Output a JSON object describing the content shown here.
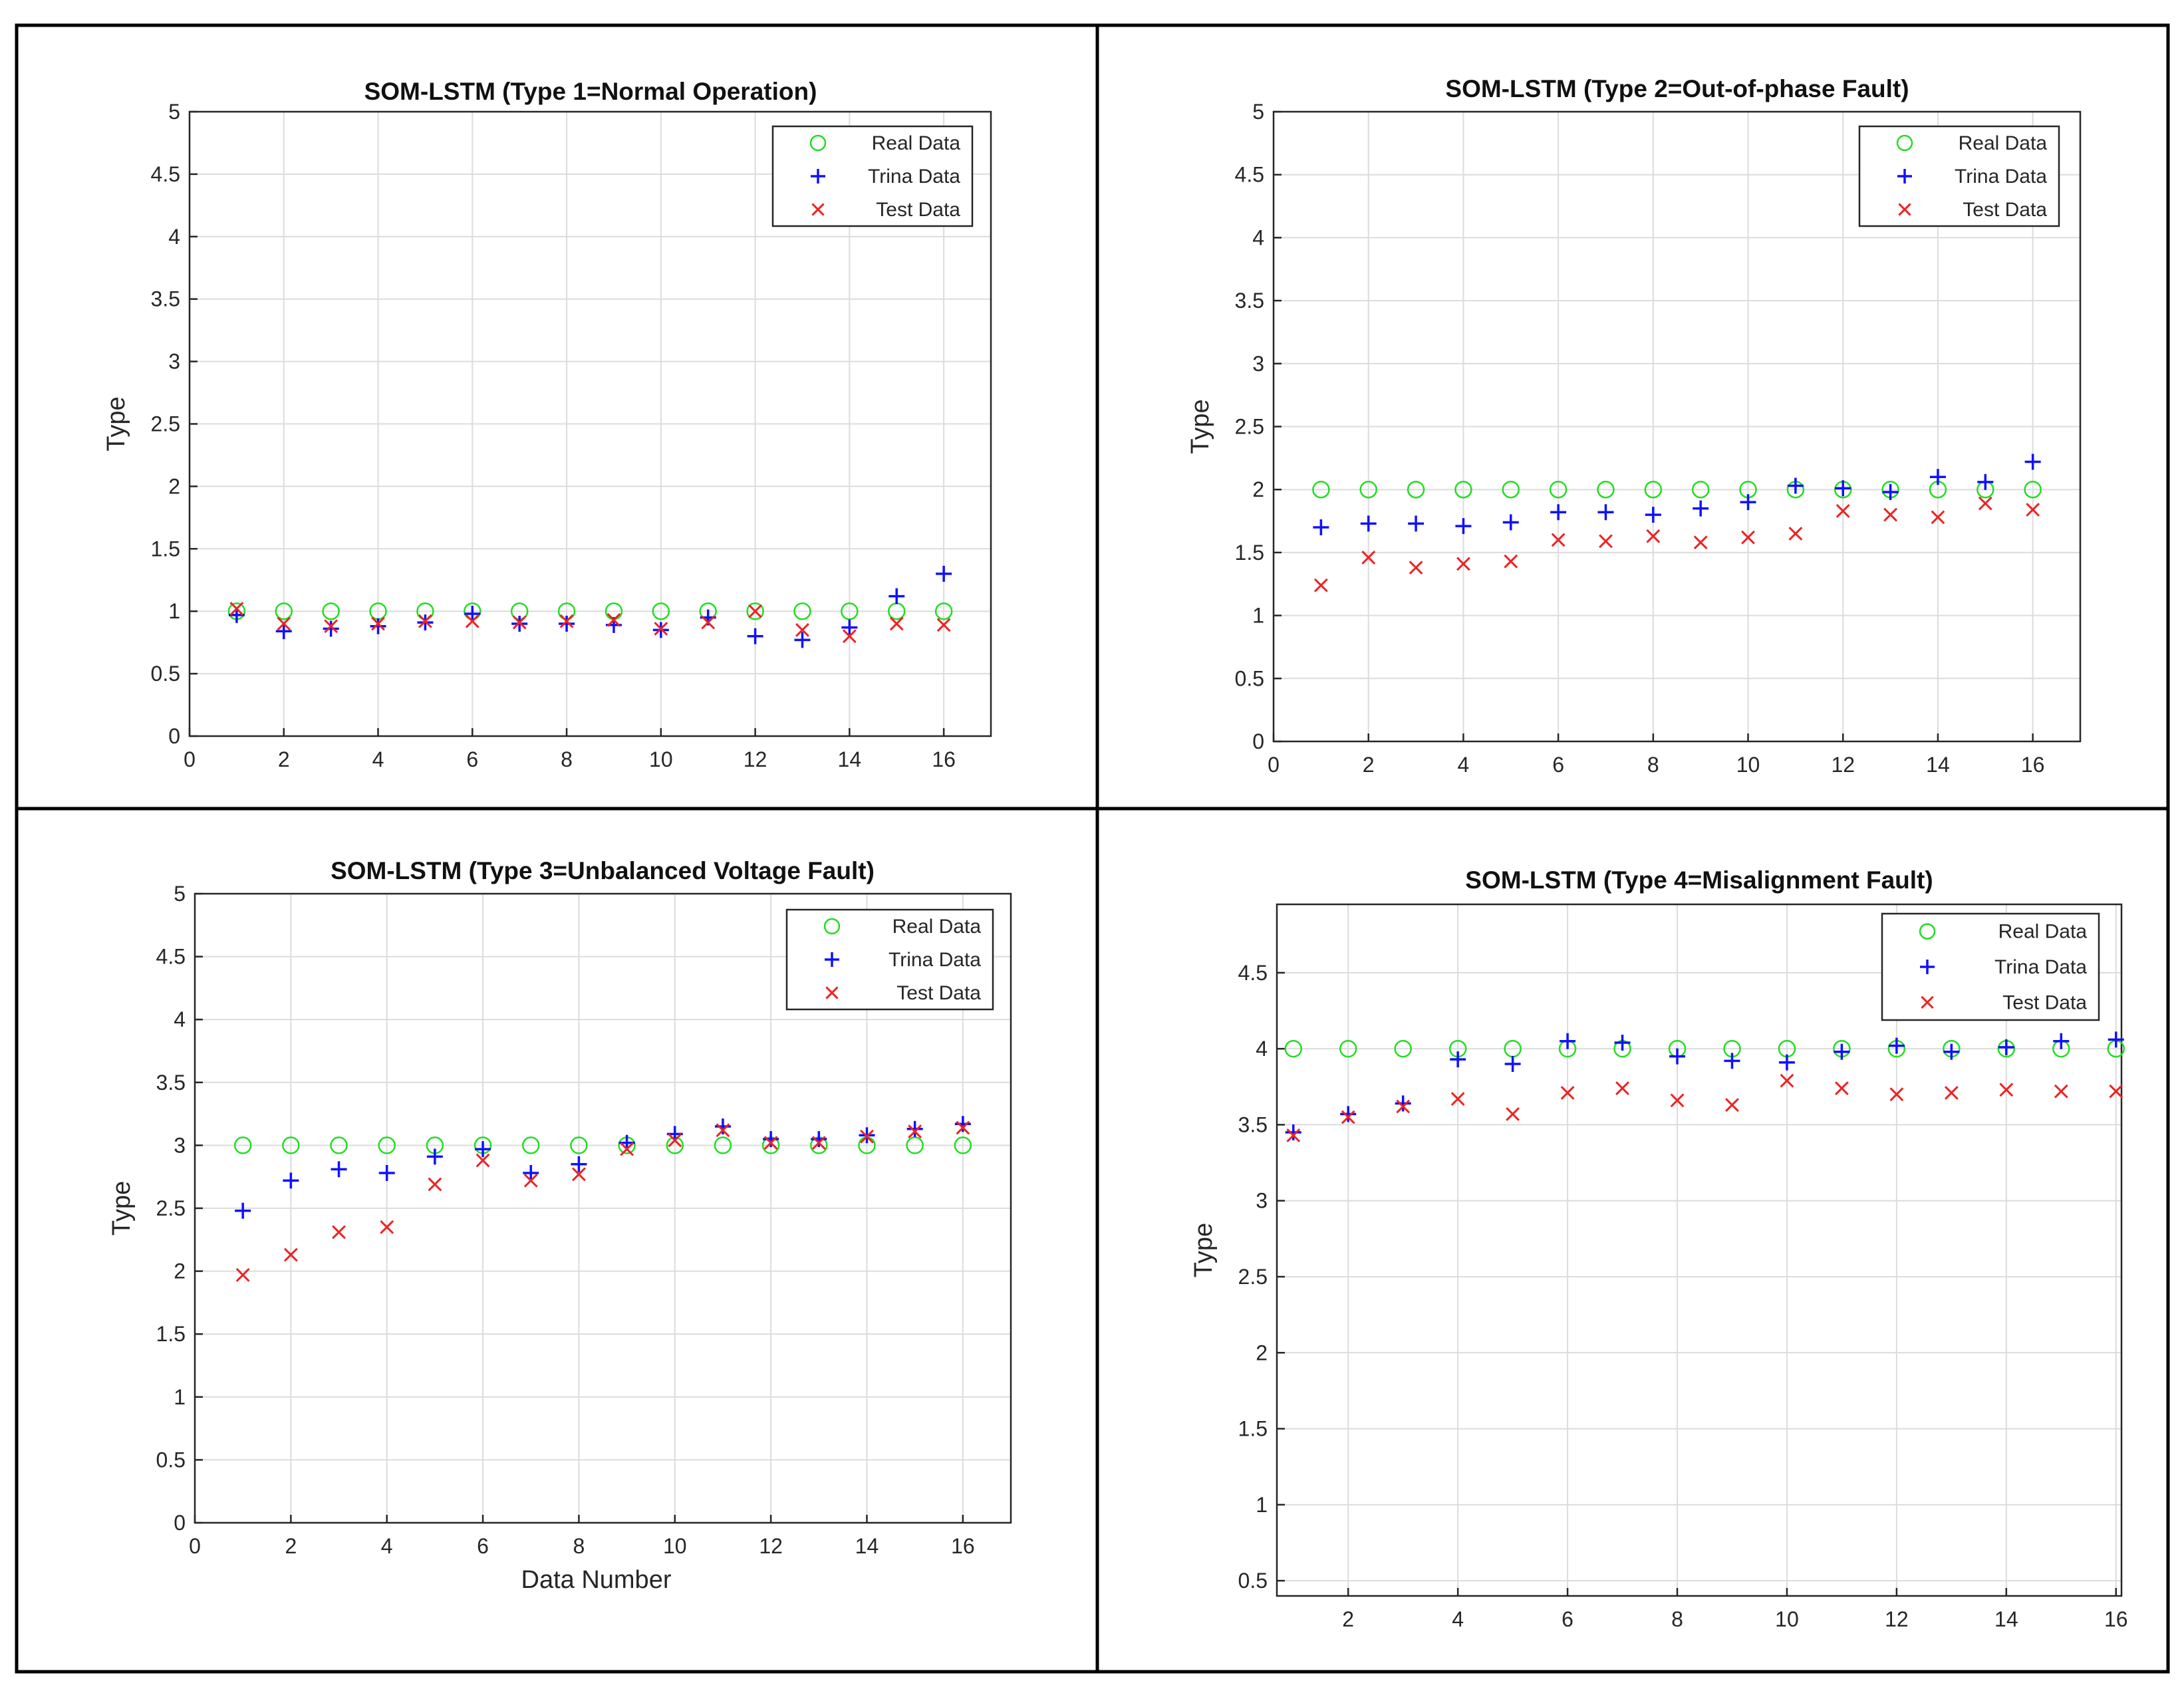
{
  "colors": {
    "real": "#22dd22",
    "train": "#1010ff",
    "test": "#ee2222",
    "grid": "#dcdcdc",
    "axes": "#262626"
  },
  "chart_data": [
    {
      "type": "scatter",
      "title": "SOM-LSTM (Type 1=Normal Operation)",
      "xlabel": "",
      "ylabel": "Type",
      "xlim": [
        0,
        17
      ],
      "ylim": [
        0,
        5
      ],
      "xticks": [
        0,
        2,
        4,
        6,
        8,
        10,
        12,
        14,
        16
      ],
      "yticks": [
        0,
        0.5,
        1,
        1.5,
        2,
        2.5,
        3,
        3.5,
        4,
        4.5,
        5
      ],
      "xtick_labels": [
        "0",
        "2",
        "4",
        "6",
        "8",
        "10",
        "12",
        "14",
        "16"
      ],
      "ytick_labels": [
        "0",
        "0.5",
        "1",
        "1.5",
        "2",
        "2.5",
        "3",
        "3.5",
        "4",
        "4.5",
        "5"
      ],
      "grid": true,
      "legend_position": "top-right",
      "x": [
        1,
        2,
        3,
        4,
        5,
        6,
        7,
        8,
        9,
        10,
        11,
        12,
        13,
        14,
        15,
        16
      ],
      "series": [
        {
          "name": "Real Data",
          "marker": "circle",
          "values": [
            1,
            1,
            1,
            1,
            1,
            1,
            1,
            1,
            1,
            1,
            1,
            1,
            1,
            1,
            1,
            1
          ]
        },
        {
          "name": "Trina Data",
          "marker": "plus",
          "values": [
            0.97,
            0.84,
            0.86,
            0.88,
            0.91,
            0.98,
            0.9,
            0.9,
            0.89,
            0.85,
            0.95,
            0.8,
            0.77,
            0.87,
            1.12,
            1.3
          ]
        },
        {
          "name": "Test Data",
          "marker": "cross",
          "values": [
            1.02,
            0.9,
            0.88,
            0.9,
            0.92,
            0.92,
            0.91,
            0.92,
            0.93,
            0.86,
            0.91,
            1.0,
            0.85,
            0.8,
            0.9,
            0.89
          ]
        }
      ]
    },
    {
      "type": "scatter",
      "title": "SOM-LSTM (Type 2=Out-of-phase Fault)",
      "xlabel": "",
      "ylabel": "Type",
      "xlim": [
        0,
        17
      ],
      "ylim": [
        0,
        5
      ],
      "xticks": [
        0,
        2,
        4,
        6,
        8,
        10,
        12,
        14,
        16
      ],
      "yticks": [
        0,
        0.5,
        1,
        1.5,
        2,
        2.5,
        3,
        3.5,
        4,
        4.5,
        5
      ],
      "xtick_labels": [
        "0",
        "2",
        "4",
        "6",
        "8",
        "10",
        "12",
        "14",
        "16"
      ],
      "ytick_labels": [
        "0",
        "0.5",
        "1",
        "1.5",
        "2",
        "2.5",
        "3",
        "3.5",
        "4",
        "4.5",
        "5"
      ],
      "grid": true,
      "legend_position": "top-right",
      "x": [
        1,
        2,
        3,
        4,
        5,
        6,
        7,
        8,
        9,
        10,
        11,
        12,
        13,
        14,
        15,
        16
      ],
      "series": [
        {
          "name": "Real Data",
          "marker": "circle",
          "values": [
            2,
            2,
            2,
            2,
            2,
            2,
            2,
            2,
            2,
            2,
            2,
            2,
            2,
            2,
            2,
            2
          ]
        },
        {
          "name": "Trina Data",
          "marker": "plus",
          "values": [
            1.7,
            1.73,
            1.73,
            1.71,
            1.74,
            1.82,
            1.82,
            1.8,
            1.85,
            1.9,
            2.03,
            2.01,
            1.98,
            2.1,
            2.06,
            2.22
          ]
        },
        {
          "name": "Test Data",
          "marker": "cross",
          "values": [
            1.24,
            1.46,
            1.38,
            1.41,
            1.43,
            1.6,
            1.59,
            1.63,
            1.58,
            1.62,
            1.65,
            1.83,
            1.8,
            1.78,
            1.89,
            1.84
          ]
        }
      ]
    },
    {
      "type": "scatter",
      "title": "SOM-LSTM (Type 3=Unbalanced Voltage Fault)",
      "xlabel": "Data Number",
      "ylabel": "Type",
      "xlim": [
        0,
        17
      ],
      "ylim": [
        0,
        5
      ],
      "xticks": [
        0,
        2,
        4,
        6,
        8,
        10,
        12,
        14,
        16
      ],
      "yticks": [
        0,
        0.5,
        1,
        1.5,
        2,
        2.5,
        3,
        3.5,
        4,
        4.5,
        5
      ],
      "xtick_labels": [
        "0",
        "2",
        "4",
        "6",
        "8",
        "10",
        "12",
        "14",
        "16"
      ],
      "ytick_labels": [
        "0",
        "0.5",
        "1",
        "1.5",
        "2",
        "2.5",
        "3",
        "3.5",
        "4",
        "4.5",
        "5"
      ],
      "grid": true,
      "legend_position": "top-right",
      "x": [
        1,
        2,
        3,
        4,
        5,
        6,
        7,
        8,
        9,
        10,
        11,
        12,
        13,
        14,
        15,
        16
      ],
      "series": [
        {
          "name": "Real Data",
          "marker": "circle",
          "values": [
            3,
            3,
            3,
            3,
            3,
            3,
            3,
            3,
            3,
            3,
            3,
            3,
            3,
            3,
            3,
            3
          ]
        },
        {
          "name": "Trina Data",
          "marker": "plus",
          "values": [
            2.48,
            2.72,
            2.81,
            2.78,
            2.91,
            2.97,
            2.78,
            2.85,
            3.02,
            3.09,
            3.15,
            3.05,
            3.05,
            3.08,
            3.13,
            3.17
          ]
        },
        {
          "name": "Test Data",
          "marker": "cross",
          "values": [
            1.97,
            2.13,
            2.31,
            2.35,
            2.69,
            2.88,
            2.72,
            2.77,
            2.97,
            3.04,
            3.12,
            3.02,
            3.02,
            3.07,
            3.11,
            3.14
          ]
        }
      ]
    },
    {
      "type": "scatter",
      "title": "SOM-LSTM (Type 4=Misalignment Fault)",
      "xlabel": "",
      "ylabel": "Type",
      "xlim": [
        0.7,
        16.1
      ],
      "ylim": [
        0.4,
        4.95
      ],
      "xticks": [
        2,
        4,
        6,
        8,
        10,
        12,
        14,
        16
      ],
      "yticks": [
        0.5,
        1,
        1.5,
        2,
        2.5,
        3,
        3.5,
        4,
        4.5
      ],
      "xtick_labels": [
        "2",
        "4",
        "6",
        "8",
        "10",
        "12",
        "14",
        "16"
      ],
      "ytick_labels": [
        "0.5",
        "1",
        "1.5",
        "2",
        "2.5",
        "3",
        "3.5",
        "4",
        "4.5"
      ],
      "grid": true,
      "legend_position": "top-right",
      "x": [
        1,
        2,
        3,
        4,
        5,
        6,
        7,
        8,
        9,
        10,
        11,
        12,
        13,
        14,
        15,
        16
      ],
      "series": [
        {
          "name": "Real Data",
          "marker": "circle",
          "values": [
            4,
            4,
            4,
            4,
            4,
            4,
            4,
            4,
            4,
            4,
            4,
            4,
            4,
            4,
            4,
            4
          ]
        },
        {
          "name": "Trina Data",
          "marker": "plus",
          "values": [
            3.45,
            3.57,
            3.64,
            3.93,
            3.9,
            4.05,
            4.04,
            3.95,
            3.92,
            3.91,
            3.98,
            4.02,
            3.98,
            4.01,
            4.05,
            4.06
          ]
        },
        {
          "name": "Test Data",
          "marker": "cross",
          "values": [
            3.43,
            3.55,
            3.62,
            3.67,
            3.57,
            3.71,
            3.74,
            3.66,
            3.63,
            3.79,
            3.74,
            3.7,
            3.71,
            3.73,
            3.72,
            3.72
          ]
        }
      ]
    }
  ]
}
